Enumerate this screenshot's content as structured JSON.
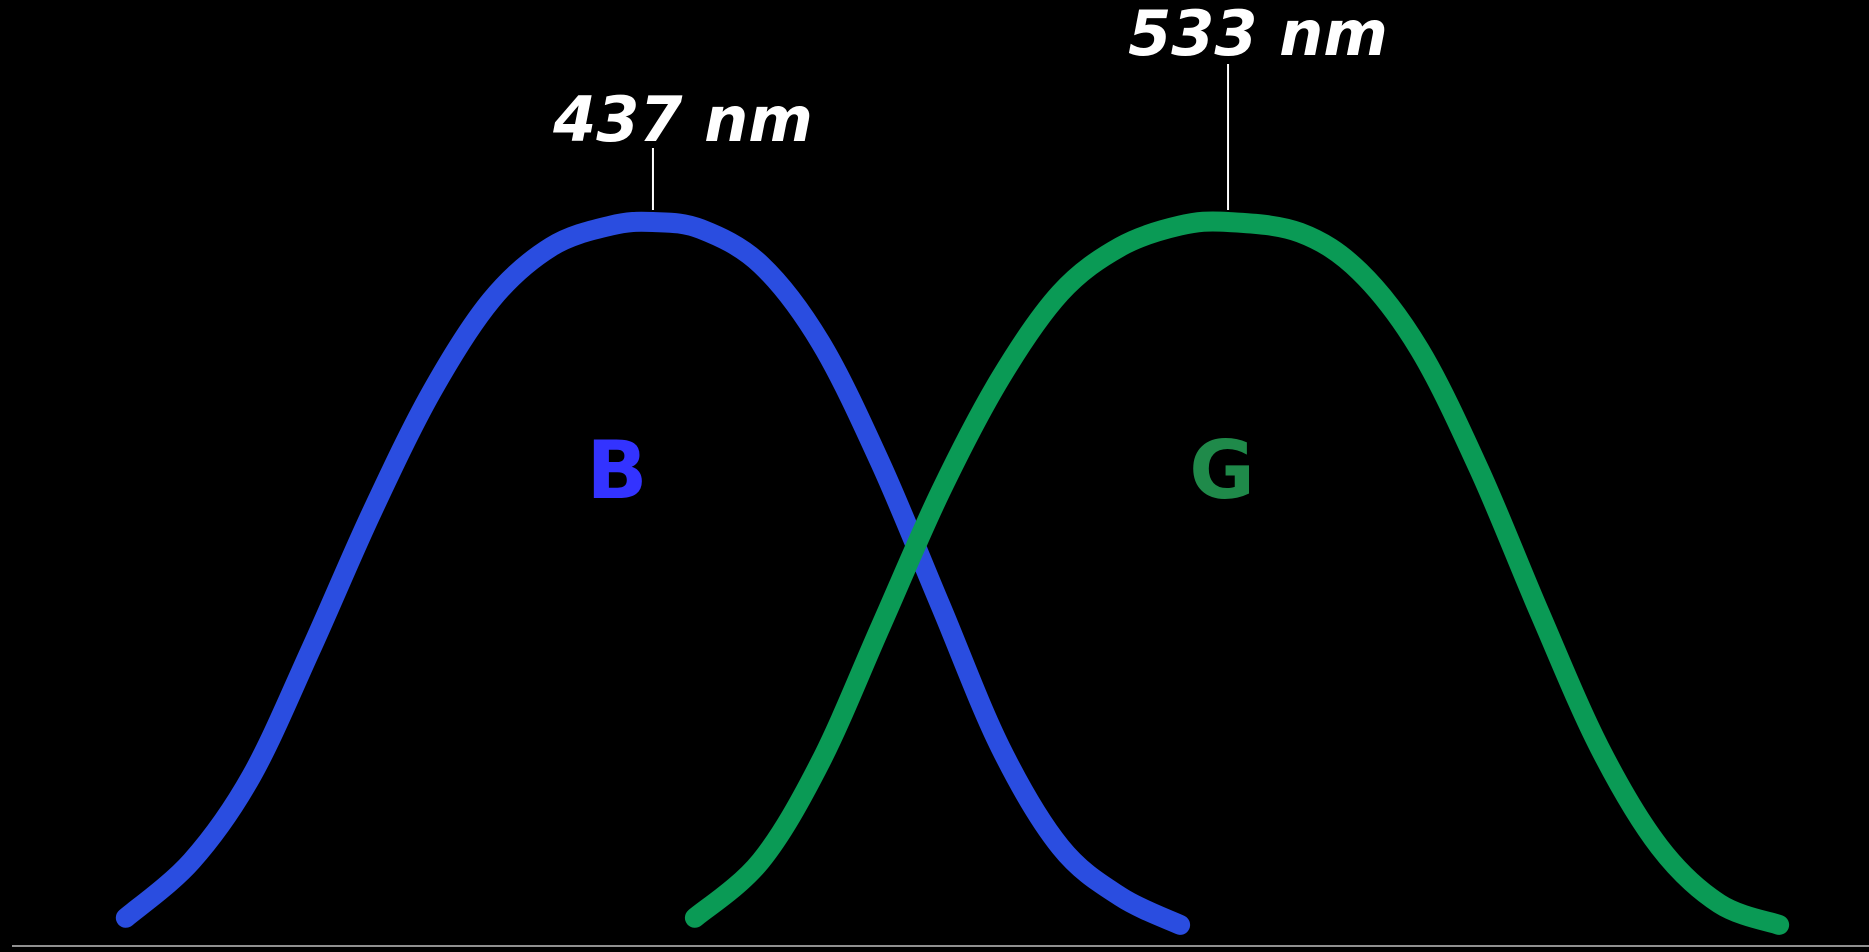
{
  "chart_data": {
    "type": "line",
    "title": "",
    "xlabel": "",
    "ylabel": "",
    "grid": false,
    "legend": "none",
    "xlim": [
      330,
      640
    ],
    "ylim": [
      0,
      1
    ],
    "series": [
      {
        "name": "B",
        "color": "#2a4de0",
        "label_color": "#3333ff",
        "peak": 437,
        "peak_label": "437 nm",
        "x": [
          349,
          360,
          370,
          380,
          390,
          400,
          410,
          420,
          430,
          437,
          445,
          455,
          465,
          475,
          485,
          495,
          505,
          515,
          525
        ],
        "y": [
          0.02,
          0.1,
          0.22,
          0.4,
          0.59,
          0.76,
          0.89,
          0.965,
          0.995,
          1.0,
          0.99,
          0.94,
          0.83,
          0.66,
          0.46,
          0.26,
          0.12,
          0.05,
          0.01
        ]
      },
      {
        "name": "G",
        "color": "#0a9a55",
        "label_color": "#1f8a4a",
        "peak": 533,
        "peak_label": "533 nm",
        "x": [
          444,
          455,
          465,
          475,
          485,
          495,
          505,
          515,
          525,
          533,
          545,
          555,
          565,
          575,
          585,
          595,
          605,
          615,
          625
        ],
        "y": [
          0.02,
          0.1,
          0.24,
          0.43,
          0.62,
          0.78,
          0.9,
          0.965,
          0.995,
          1.0,
          0.985,
          0.93,
          0.82,
          0.65,
          0.45,
          0.26,
          0.12,
          0.04,
          0.01
        ]
      }
    ]
  }
}
